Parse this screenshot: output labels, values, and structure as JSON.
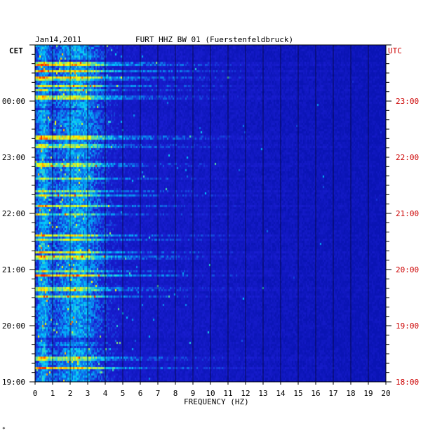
{
  "header": {
    "date": "Jan14,2011",
    "station": "FURT HHZ BW 01 (Fuerstenfeldbruck)"
  },
  "chart_data": {
    "type": "heatmap",
    "title": "FURT HHZ BW 01 (Fuerstenfeldbruck)",
    "xlabel": "FREQUENCY (HZ)",
    "xlim": [
      0,
      20
    ],
    "x_ticks": [
      "0",
      "1",
      "2",
      "3",
      "4",
      "5",
      "6",
      "7",
      "8",
      "9",
      "10",
      "11",
      "12",
      "13",
      "14",
      "15",
      "16",
      "17",
      "18",
      "19",
      "20"
    ],
    "left_axis_label": "CET",
    "right_axis_label": "UTC",
    "left_ticks": [
      {
        "hours_before_end": 4,
        "label": "00:00"
      },
      {
        "hours_before_end": 3,
        "label": "23:00"
      },
      {
        "hours_before_end": 2,
        "label": "22:00"
      },
      {
        "hours_before_end": 1,
        "label": "21:00"
      },
      {
        "hours_before_end": 0,
        "label": "20:00"
      }
    ],
    "left_bottom_tick": "19:00",
    "right_ticks": [
      {
        "hours_before_end": 4,
        "label": "23:00"
      },
      {
        "hours_before_end": 3,
        "label": "22:00"
      },
      {
        "hours_before_end": 2,
        "label": "21:00"
      },
      {
        "hours_before_end": 1,
        "label": "20:00"
      },
      {
        "hours_before_end": 0,
        "label": "19:00"
      }
    ],
    "right_bottom_tick": "18:00",
    "colors": {
      "background": "#1a1ed2",
      "low": "#0a14b4",
      "mid": "#00c8ff",
      "high": "#ffff00",
      "peak": "#ff2800",
      "left_labels": "#000000",
      "right_labels": "#cc0000",
      "grid": "#000000"
    }
  },
  "footnote": "*"
}
